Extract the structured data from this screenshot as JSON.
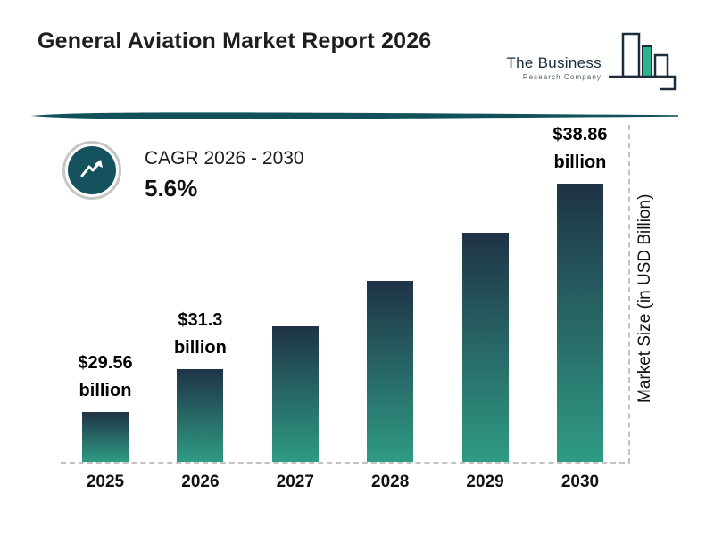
{
  "header": {
    "title": "General Aviation Market Report 2026",
    "logo_line1": "The Business",
    "logo_line2": "Research Company"
  },
  "cagr": {
    "label": "CAGR 2026 - 2030",
    "value": "5.6%"
  },
  "chart_data": {
    "type": "bar",
    "title": "General Aviation Market Report 2026",
    "categories": [
      "2025",
      "2026",
      "2027",
      "2028",
      "2029",
      "2030"
    ],
    "values": [
      29.56,
      31.3,
      33.05,
      34.91,
      36.86,
      38.86
    ],
    "bar_labels": [
      "$29.56 billion",
      "$31.3 billion",
      null,
      null,
      null,
      "$38.86 billion"
    ],
    "cagr_label": "CAGR 2026 - 2030",
    "cagr_value": "5.6%",
    "xlabel": "",
    "ylabel": "Market Size (in USD Billion)",
    "value_domain": [
      29.56,
      38.86
    ],
    "legend": "none",
    "grid": "off"
  },
  "colors": {
    "bar_top": "#1f3346",
    "bar_bottom": "#2f9b84",
    "divider": "#12505a",
    "badge_fill": "#14525e",
    "logo_accent": "#2db48c",
    "logo_dark": "#1d2d3e",
    "dashed_line": "#c2c2c2"
  }
}
